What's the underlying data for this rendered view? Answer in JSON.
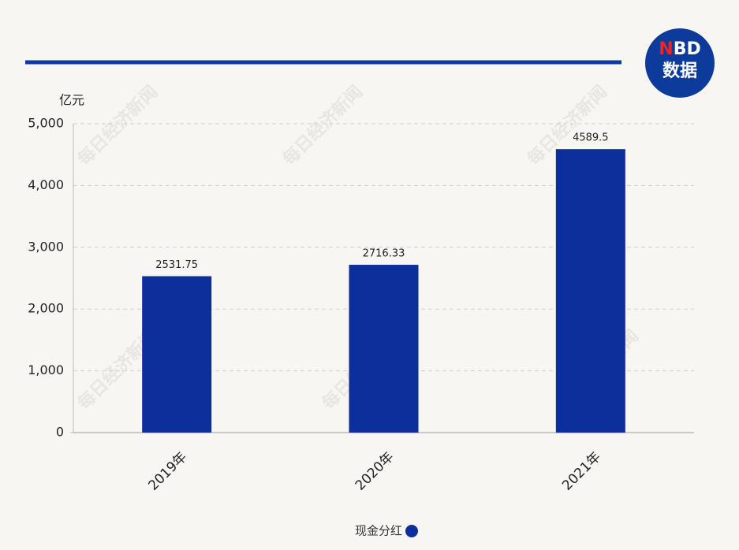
{
  "brand": {
    "logo": "NBD",
    "logo_sub": "数据",
    "watermark": "每日经济新闻"
  },
  "chart_data": {
    "type": "bar",
    "y_unit": "亿元",
    "categories": [
      "2019年",
      "2020年",
      "2021年"
    ],
    "series": [
      {
        "name": "现金分红",
        "color": "#0d2f9c",
        "values": [
          2531.75,
          2716.33,
          4589.5
        ]
      }
    ],
    "ylim": [
      0,
      5000
    ],
    "yticks": [
      0,
      {
        "value": 1000,
        "label": "1,000"
      },
      {
        "value": 2000,
        "label": "2,000"
      },
      {
        "value": 3000,
        "label": "3,000"
      },
      {
        "value": 4000,
        "label": "4,000"
      },
      {
        "value": 5000,
        "label": "5,000"
      }
    ],
    "grid": true,
    "legend": "bottom"
  }
}
